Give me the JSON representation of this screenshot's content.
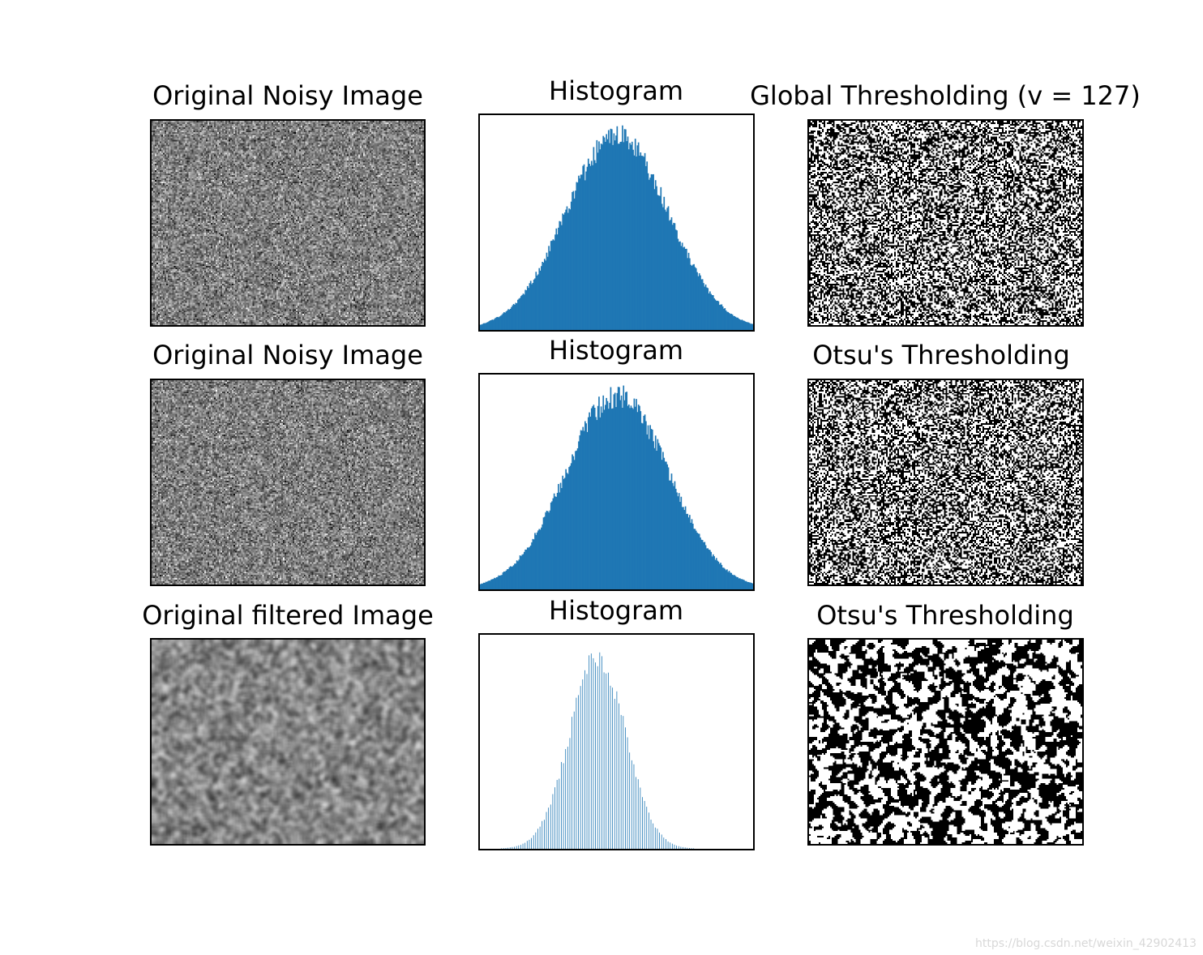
{
  "figure": {
    "row1": {
      "image_title": "Original Noisy Image",
      "hist_title": "Histogram",
      "thresh_title": "Global Thresholding (v = 127)"
    },
    "row2": {
      "image_title": "Original Noisy Image",
      "hist_title": "Histogram",
      "thresh_title": "Otsu's Thresholding"
    },
    "row3": {
      "image_title": "Original filtered Image",
      "hist_title": "Histogram",
      "thresh_title": "Otsu's Thresholding"
    }
  },
  "colors": {
    "histogram_bar": "#1f77b4",
    "axes_frame": "#000000",
    "background": "#ffffff"
  },
  "watermark": "https://blog.csdn.net/weixin_42902413"
}
